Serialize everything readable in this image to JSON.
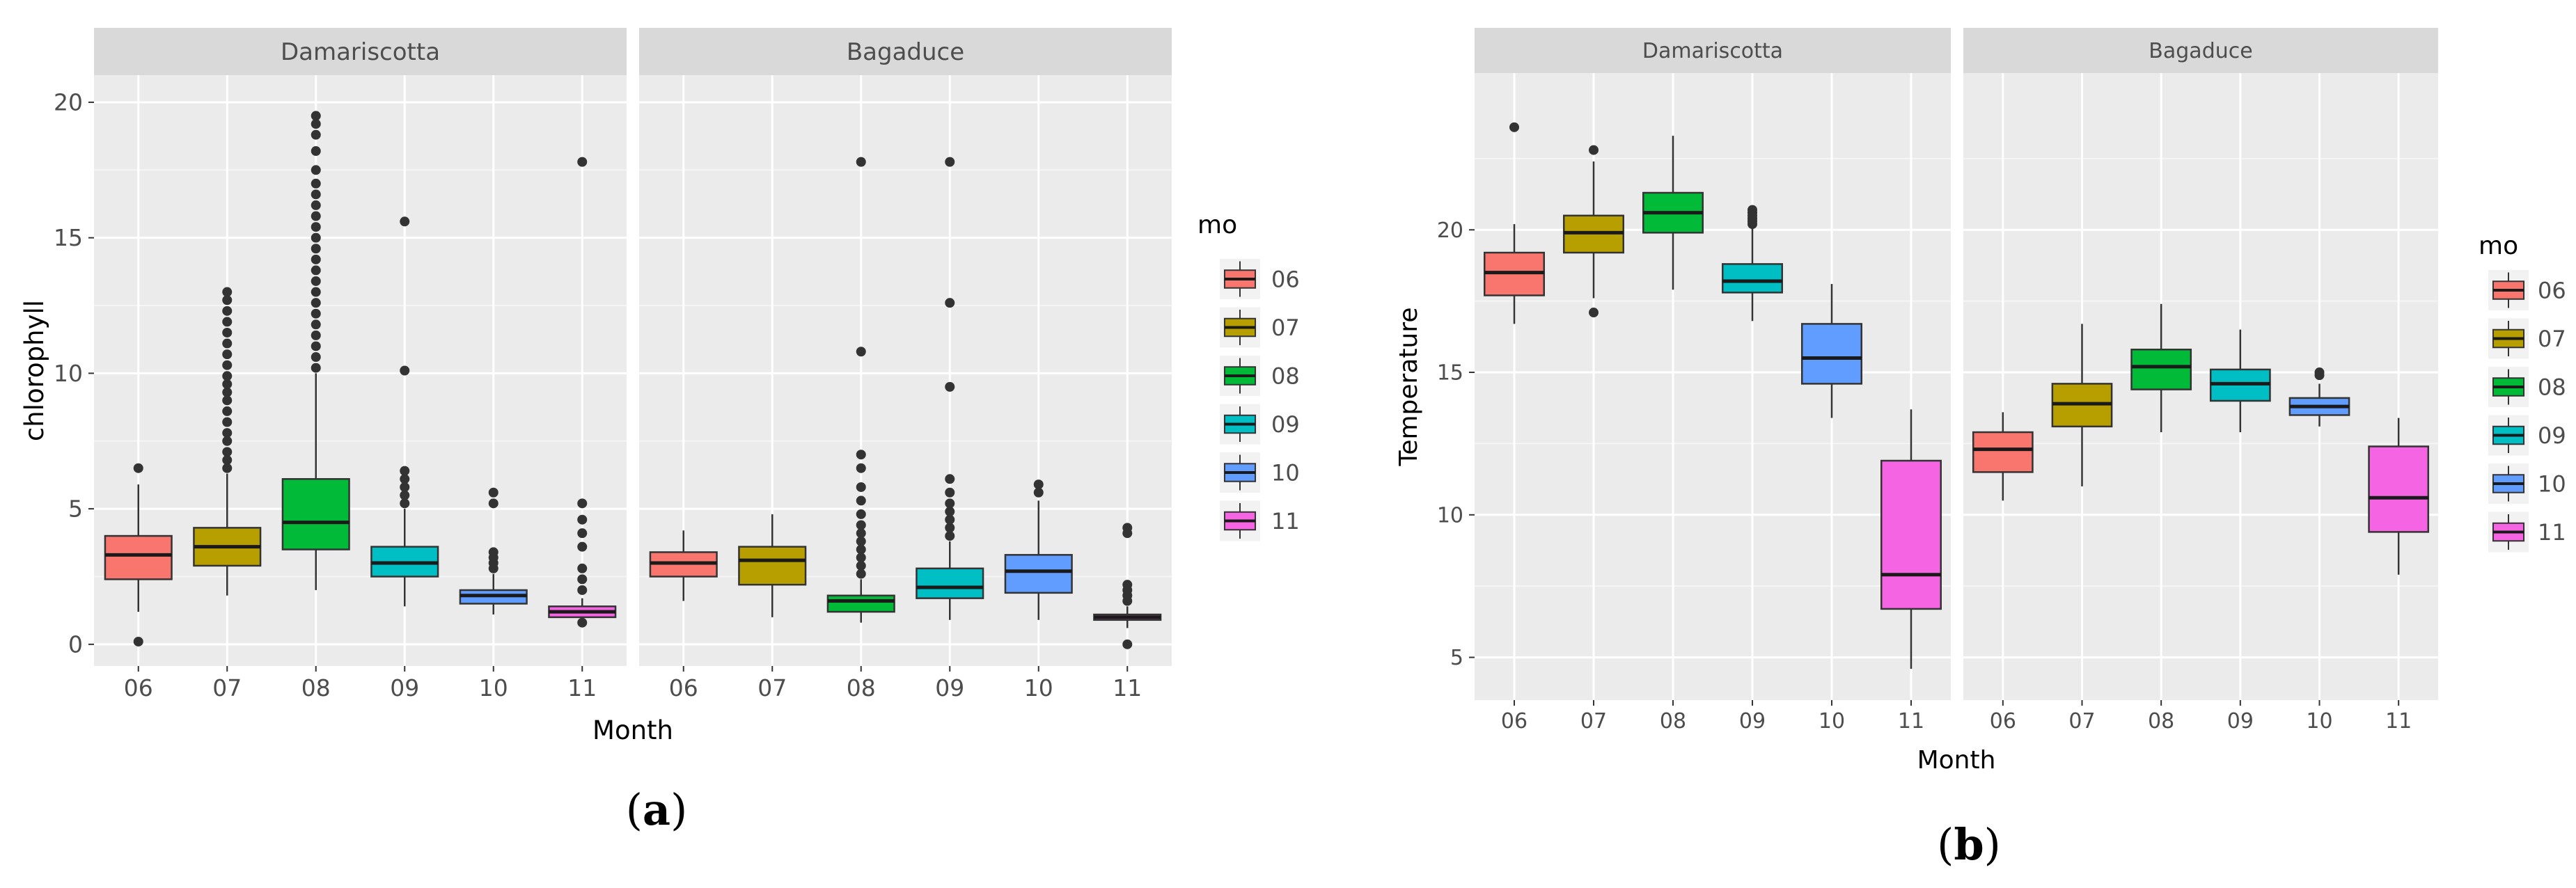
{
  "figure_labels": {
    "a": "(a)",
    "b": "(b)"
  },
  "chart_data": [
    {
      "type": "boxplot",
      "panel_label": "(a)",
      "facets": [
        "Damariscotta",
        "Bagaduce"
      ],
      "categories": [
        "06",
        "07",
        "08",
        "09",
        "10",
        "11"
      ],
      "xlabel": "Month",
      "ylabel": "chlorophyll",
      "ylim": [
        -0.8,
        21
      ],
      "yticks": [
        0,
        5,
        10,
        15,
        20
      ],
      "ytick_labels": [
        "0",
        "5",
        "10",
        "15",
        "20"
      ],
      "legend": {
        "title": "mo",
        "placement": "right",
        "entries": [
          "06",
          "07",
          "08",
          "09",
          "10",
          "11"
        ],
        "colors": [
          "#F8766D",
          "#B79F00",
          "#00BA38",
          "#00BFC4",
          "#619CFF",
          "#F564E3"
        ]
      },
      "series": [
        {
          "facet": "Damariscotta",
          "boxes": [
            {
              "month": "06",
              "min": 1.2,
              "q1": 2.4,
              "median": 3.3,
              "q3": 4.0,
              "max": 5.9,
              "outliers": [
                6.5,
                0.1
              ]
            },
            {
              "month": "07",
              "min": 1.8,
              "q1": 2.9,
              "median": 3.6,
              "q3": 4.3,
              "max": 6.3,
              "outliers": [
                6.5,
                6.8,
                7.1,
                7.5,
                7.8,
                8.2,
                8.6,
                9.0,
                9.3,
                9.6,
                9.9,
                10.3,
                10.7,
                11.1,
                11.5,
                11.9,
                12.3,
                12.7,
                13.0
              ]
            },
            {
              "month": "08",
              "min": 2.0,
              "q1": 3.5,
              "median": 4.5,
              "q3": 6.1,
              "max": 10.0,
              "outliers": [
                10.2,
                10.6,
                11.0,
                11.4,
                11.8,
                12.2,
                12.6,
                13.0,
                13.4,
                13.8,
                14.2,
                14.6,
                15.0,
                15.4,
                15.8,
                16.2,
                16.6,
                17.0,
                17.5,
                18.2,
                18.8,
                19.2,
                19.5
              ]
            },
            {
              "month": "09",
              "min": 1.4,
              "q1": 2.5,
              "median": 3.0,
              "q3": 3.6,
              "max": 5.0,
              "outliers": [
                5.2,
                5.5,
                5.8,
                6.1,
                6.4,
                10.1,
                15.6
              ]
            },
            {
              "month": "10",
              "min": 1.1,
              "q1": 1.5,
              "median": 1.8,
              "q3": 2.0,
              "max": 2.6,
              "outliers": [
                2.8,
                3.0,
                3.2,
                3.4,
                5.2,
                5.6
              ]
            },
            {
              "month": "11",
              "min": 0.9,
              "q1": 1.0,
              "median": 1.2,
              "q3": 1.4,
              "max": 1.7,
              "outliers": [
                0.8,
                2.0,
                2.4,
                2.8,
                3.6,
                4.1,
                4.6,
                5.2,
                17.8
              ]
            }
          ]
        },
        {
          "facet": "Bagaduce",
          "boxes": [
            {
              "month": "06",
              "min": 1.6,
              "q1": 2.5,
              "median": 3.0,
              "q3": 3.4,
              "max": 4.2,
              "outliers": []
            },
            {
              "month": "07",
              "min": 1.0,
              "q1": 2.2,
              "median": 3.1,
              "q3": 3.6,
              "max": 4.8,
              "outliers": []
            },
            {
              "month": "08",
              "min": 0.8,
              "q1": 1.2,
              "median": 1.6,
              "q3": 1.8,
              "max": 2.4,
              "outliers": [
                2.6,
                2.9,
                3.2,
                3.5,
                3.8,
                4.1,
                4.4,
                4.8,
                5.3,
                5.8,
                6.5,
                7.0,
                10.8,
                17.8
              ]
            },
            {
              "month": "09",
              "min": 0.9,
              "q1": 1.7,
              "median": 2.1,
              "q3": 2.8,
              "max": 3.8,
              "outliers": [
                4.0,
                4.3,
                4.6,
                4.9,
                5.2,
                5.6,
                6.1,
                9.5,
                12.6,
                17.8
              ]
            },
            {
              "month": "10",
              "min": 0.9,
              "q1": 1.9,
              "median": 2.7,
              "q3": 3.3,
              "max": 5.3,
              "outliers": [
                5.6,
                5.9
              ]
            },
            {
              "month": "11",
              "min": 0.6,
              "q1": 0.9,
              "median": 1.0,
              "q3": 1.1,
              "max": 1.4,
              "outliers": [
                0.0,
                1.6,
                1.8,
                2.0,
                2.2,
                4.1,
                4.3
              ]
            }
          ]
        }
      ]
    },
    {
      "type": "boxplot",
      "panel_label": "(b)",
      "facets": [
        "Damariscotta",
        "Bagaduce"
      ],
      "categories": [
        "06",
        "07",
        "08",
        "09",
        "10",
        "11"
      ],
      "xlabel": "Month",
      "ylabel": "Temperature",
      "ylim": [
        3.5,
        25.5
      ],
      "yticks": [
        5,
        10,
        15,
        20
      ],
      "ytick_labels": [
        "5",
        "10",
        "15",
        "20"
      ],
      "legend": {
        "title": "mo",
        "placement": "right",
        "entries": [
          "06",
          "07",
          "08",
          "09",
          "10",
          "11"
        ],
        "colors": [
          "#F8766D",
          "#B79F00",
          "#00BA38",
          "#00BFC4",
          "#619CFF",
          "#F564E3"
        ]
      },
      "series": [
        {
          "facet": "Damariscotta",
          "boxes": [
            {
              "month": "06",
              "min": 16.7,
              "q1": 17.7,
              "median": 18.5,
              "q3": 19.2,
              "max": 20.2,
              "outliers": [
                23.6
              ]
            },
            {
              "month": "07",
              "min": 17.6,
              "q1": 19.2,
              "median": 19.9,
              "q3": 20.5,
              "max": 22.4,
              "outliers": [
                17.1,
                22.8
              ]
            },
            {
              "month": "08",
              "min": 17.9,
              "q1": 19.9,
              "median": 20.6,
              "q3": 21.3,
              "max": 23.3,
              "outliers": []
            },
            {
              "month": "09",
              "min": 16.8,
              "q1": 17.8,
              "median": 18.2,
              "q3": 18.8,
              "max": 20.1,
              "outliers": [
                20.2,
                20.3,
                20.4,
                20.5,
                20.6,
                20.7
              ]
            },
            {
              "month": "10",
              "min": 13.4,
              "q1": 14.6,
              "median": 15.5,
              "q3": 16.7,
              "max": 18.1,
              "outliers": []
            },
            {
              "month": "11",
              "min": 4.6,
              "q1": 6.7,
              "median": 7.9,
              "q3": 11.9,
              "max": 13.7,
              "outliers": []
            }
          ]
        },
        {
          "facet": "Bagaduce",
          "boxes": [
            {
              "month": "06",
              "min": 10.5,
              "q1": 11.5,
              "median": 12.3,
              "q3": 12.9,
              "max": 13.6,
              "outliers": []
            },
            {
              "month": "07",
              "min": 11.0,
              "q1": 13.1,
              "median": 13.9,
              "q3": 14.6,
              "max": 16.7,
              "outliers": []
            },
            {
              "month": "08",
              "min": 12.9,
              "q1": 14.4,
              "median": 15.2,
              "q3": 15.8,
              "max": 17.4,
              "outliers": []
            },
            {
              "month": "09",
              "min": 12.9,
              "q1": 14.0,
              "median": 14.6,
              "q3": 15.1,
              "max": 16.5,
              "outliers": []
            },
            {
              "month": "10",
              "min": 13.1,
              "q1": 13.5,
              "median": 13.8,
              "q3": 14.1,
              "max": 14.6,
              "outliers": [
                14.9,
                15.0
              ]
            },
            {
              "month": "11",
              "min": 7.9,
              "q1": 9.4,
              "median": 10.6,
              "q3": 12.4,
              "max": 13.4,
              "outliers": []
            }
          ]
        }
      ]
    }
  ]
}
